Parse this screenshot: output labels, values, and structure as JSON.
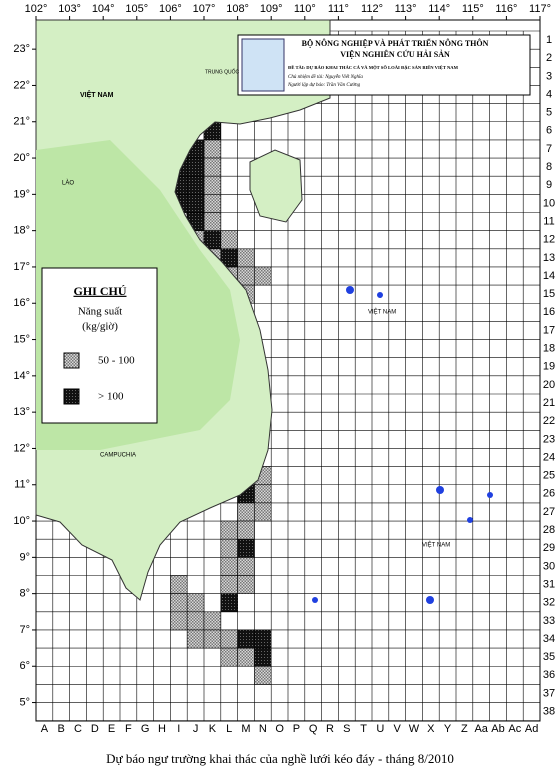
{
  "header": {
    "ministry": "BỘ NÔNG NGHIỆP VÀ PHÁT TRIỂN NÔNG THÔN",
    "institute": "VIỆN NGHIÊN CỨU HẢI SẢN",
    "project": "ĐỀ TÀI: DỰ BÁO KHAI THÁC CÁ VÀ MỘT SỐ LOÀI ĐẶC SẢN BIỂN VIỆT NAM",
    "leader": "Chủ nhiệm đề tài: Nguyễn Viết Nghĩa",
    "forecaster": "Người lập dự báo: Trần Văn Cường"
  },
  "legend": {
    "title": "GHI CHÚ",
    "subtitle": "Năng suất",
    "unit": "(kg/giờ)",
    "items": [
      "50 - 100",
      "> 100"
    ]
  },
  "places": [
    "TRUNG QUỐC",
    "VIỆT NAM",
    "LÀO",
    "CAMPUCHIA",
    "VIỆT NAM",
    "VIỆT NAM"
  ],
  "longitudes": [
    {
      "value": 102,
      "label": "102°"
    },
    {
      "value": 103,
      "label": "103°"
    },
    {
      "value": 104,
      "label": "104°"
    },
    {
      "value": 105,
      "label": "105°"
    },
    {
      "value": 106,
      "label": "106°"
    },
    {
      "value": 107,
      "label": "107°"
    },
    {
      "value": 108,
      "label": "108°"
    },
    {
      "value": 109,
      "label": "109°"
    },
    {
      "value": 110,
      "label": "110°"
    },
    {
      "value": 111,
      "label": "111°"
    },
    {
      "value": 112,
      "label": "112°"
    },
    {
      "value": 113,
      "label": "113°"
    },
    {
      "value": 114,
      "label": "114°"
    },
    {
      "value": 115,
      "label": "115°"
    },
    {
      "value": 116,
      "label": "116°"
    },
    {
      "value": 117,
      "label": "117°"
    }
  ],
  "latitudes": [
    {
      "value": 23,
      "label": "23°"
    },
    {
      "value": 22,
      "label": "22°"
    },
    {
      "value": 21,
      "label": "21°"
    },
    {
      "value": 20,
      "label": "20°"
    },
    {
      "value": 19,
      "label": "19°"
    },
    {
      "value": 18,
      "label": "18°"
    },
    {
      "value": 17,
      "label": "17°"
    },
    {
      "value": 16,
      "label": "16°"
    },
    {
      "value": 15,
      "label": "15°"
    },
    {
      "value": 14,
      "label": "14°"
    },
    {
      "value": 13,
      "label": "13°"
    },
    {
      "value": 12,
      "label": "12°"
    },
    {
      "value": 11,
      "label": "11°"
    },
    {
      "value": 10,
      "label": "10°"
    },
    {
      "value": 9,
      "label": "9°"
    },
    {
      "value": 8,
      "label": "8°"
    },
    {
      "value": 7,
      "label": "7°"
    },
    {
      "value": 6,
      "label": "6°"
    },
    {
      "value": 5,
      "label": "5°"
    }
  ],
  "rows": [
    1,
    2,
    3,
    4,
    5,
    6,
    7,
    8,
    9,
    10,
    11,
    12,
    13,
    14,
    15,
    16,
    17,
    18,
    19,
    20,
    21,
    22,
    23,
    24,
    25,
    26,
    27,
    28,
    29,
    30,
    31,
    32,
    33,
    34,
    35,
    36,
    37,
    38
  ],
  "columns": [
    "A",
    "B",
    "C",
    "D",
    "E",
    "F",
    "G",
    "H",
    "I",
    "J",
    "K",
    "L",
    "M",
    "N",
    "O",
    "P",
    "Q",
    "R",
    "S",
    "T",
    "U",
    "V",
    "W",
    "X",
    "Y",
    "Z",
    "Aa",
    "Ab",
    "Ac",
    "Ad"
  ],
  "cells": {
    "medium": [
      [
        10,
        7
      ],
      [
        10,
        8
      ],
      [
        10,
        9
      ],
      [
        10,
        10
      ],
      [
        8,
        11
      ],
      [
        10,
        11
      ],
      [
        9,
        12
      ],
      [
        11,
        12
      ],
      [
        10,
        13
      ],
      [
        12,
        13
      ],
      [
        11,
        14
      ],
      [
        12,
        14
      ],
      [
        13,
        14
      ],
      [
        12,
        15
      ],
      [
        13,
        25
      ],
      [
        13,
        26
      ],
      [
        12,
        27
      ],
      [
        13,
        27
      ],
      [
        11,
        28
      ],
      [
        12,
        28
      ],
      [
        11,
        29
      ],
      [
        11,
        30
      ],
      [
        12,
        30
      ],
      [
        8,
        31
      ],
      [
        11,
        31
      ],
      [
        12,
        31
      ],
      [
        8,
        32
      ],
      [
        9,
        32
      ],
      [
        8,
        33
      ],
      [
        9,
        33
      ],
      [
        10,
        33
      ],
      [
        9,
        34
      ],
      [
        10,
        34
      ],
      [
        11,
        34
      ],
      [
        11,
        35
      ],
      [
        12,
        35
      ],
      [
        13,
        36
      ]
    ],
    "high": [
      [
        10,
        6
      ],
      [
        9,
        7
      ],
      [
        8,
        8
      ],
      [
        9,
        8
      ],
      [
        8,
        9
      ],
      [
        9,
        9
      ],
      [
        7,
        10
      ],
      [
        8,
        10
      ],
      [
        9,
        10
      ],
      [
        9,
        11
      ],
      [
        10,
        12
      ],
      [
        11,
        13
      ],
      [
        12,
        26
      ],
      [
        12,
        29
      ],
      [
        11,
        32
      ],
      [
        12,
        34
      ],
      [
        13,
        34
      ],
      [
        13,
        35
      ]
    ]
  },
  "caption": "Dự báo ngư trường khai thác của nghề lưới kéo đáy - tháng 8/2010"
}
